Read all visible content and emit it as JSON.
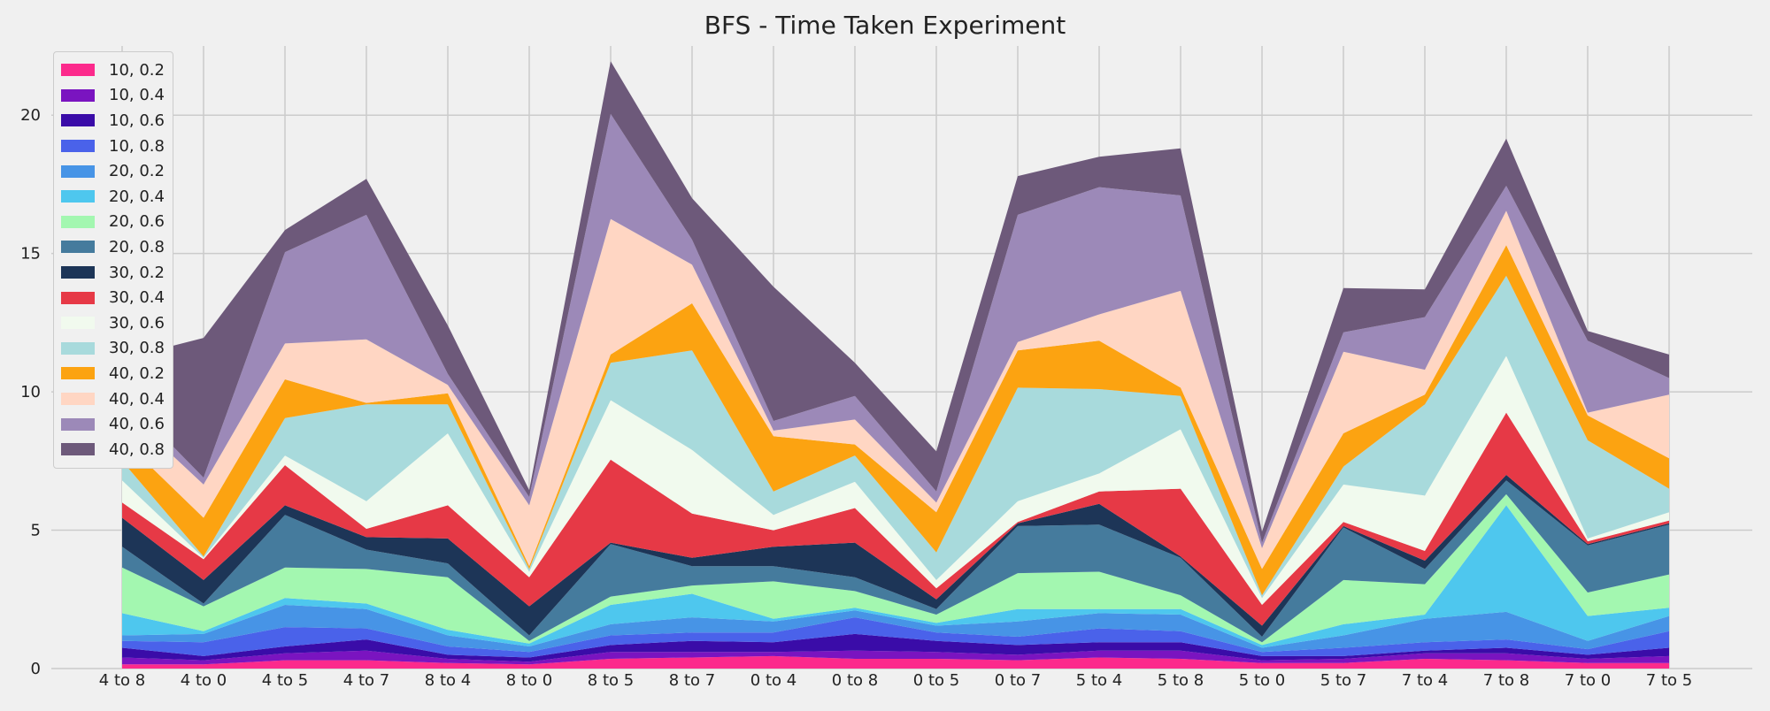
{
  "chart_data": {
    "type": "area",
    "stacked": true,
    "title": "BFS - Time Taken Experiment",
    "xlabel": "",
    "ylabel": "",
    "ylim": [
      0,
      22.5
    ],
    "yticks": [
      0,
      5,
      10,
      15,
      20
    ],
    "grid": true,
    "legend_position": "top-left",
    "categories": [
      "4 to 8",
      "4 to 0",
      "4 to 5",
      "4 to 7",
      "8 to 4",
      "8 to 0",
      "8 to 5",
      "8 to 7",
      "0 to 4",
      "0 to 8",
      "0 to 5",
      "0 to 7",
      "5 to 4",
      "5 to 8",
      "5 to 0",
      "5 to 7",
      "7 to 4",
      "7 to 8",
      "7 to 0",
      "7 to 5"
    ],
    "series": [
      {
        "name": "10, 0.2",
        "color": "#fc2a8c",
        "values": [
          0.15,
          0.15,
          0.3,
          0.3,
          0.2,
          0.15,
          0.35,
          0.4,
          0.45,
          0.35,
          0.35,
          0.3,
          0.4,
          0.35,
          0.2,
          0.2,
          0.35,
          0.3,
          0.2,
          0.2
        ]
      },
      {
        "name": "10, 0.4",
        "color": "#7a14c0",
        "values": [
          0.25,
          0.15,
          0.25,
          0.35,
          0.15,
          0.1,
          0.25,
          0.2,
          0.15,
          0.3,
          0.25,
          0.2,
          0.25,
          0.3,
          0.1,
          0.15,
          0.2,
          0.25,
          0.15,
          0.25
        ]
      },
      {
        "name": "10, 0.6",
        "color": "#3a0ca8",
        "values": [
          0.35,
          0.15,
          0.25,
          0.4,
          0.15,
          0.15,
          0.25,
          0.4,
          0.35,
          0.6,
          0.4,
          0.35,
          0.3,
          0.3,
          0.15,
          0.1,
          0.1,
          0.2,
          0.15,
          0.3
        ]
      },
      {
        "name": "10, 0.8",
        "color": "#4a62ea",
        "values": [
          0.25,
          0.5,
          0.7,
          0.4,
          0.3,
          0.2,
          0.35,
          0.3,
          0.35,
          0.6,
          0.3,
          0.3,
          0.5,
          0.4,
          0.15,
          0.3,
          0.3,
          0.3,
          0.2,
          0.6
        ]
      },
      {
        "name": "20, 0.2",
        "color": "#4794e6",
        "values": [
          0.2,
          0.3,
          0.8,
          0.7,
          0.4,
          0.2,
          0.4,
          0.55,
          0.4,
          0.25,
          0.25,
          0.55,
          0.55,
          0.6,
          0.15,
          0.45,
          0.85,
          1.0,
          0.3,
          0.55
        ]
      },
      {
        "name": "20, 0.4",
        "color": "#4ec7ee",
        "values": [
          0.8,
          0.1,
          0.25,
          0.2,
          0.2,
          0.1,
          0.7,
          0.85,
          0.1,
          0.1,
          0.1,
          0.45,
          0.15,
          0.2,
          0.1,
          0.4,
          0.15,
          3.85,
          0.9,
          0.3
        ]
      },
      {
        "name": "20, 0.6",
        "color": "#a3f7b0",
        "values": [
          1.65,
          0.9,
          1.1,
          1.25,
          1.9,
          0.1,
          0.3,
          0.3,
          1.35,
          0.6,
          0.3,
          1.3,
          1.35,
          0.5,
          0.1,
          1.6,
          1.1,
          0.4,
          0.85,
          1.2
        ]
      },
      {
        "name": "20, 0.8",
        "color": "#457b9d",
        "values": [
          0.75,
          0.1,
          1.9,
          0.7,
          0.5,
          0.2,
          1.9,
          0.7,
          0.55,
          0.5,
          0.2,
          1.7,
          1.7,
          1.35,
          0.2,
          1.9,
          0.55,
          0.5,
          1.7,
          1.8
        ]
      },
      {
        "name": "30, 0.2",
        "color": "#1d3557",
        "values": [
          1.05,
          0.85,
          0.35,
          0.45,
          0.9,
          1.05,
          0.05,
          0.3,
          0.7,
          1.25,
          0.35,
          0.1,
          0.75,
          0.05,
          0.4,
          0.05,
          0.3,
          0.2,
          0.05,
          0.05
        ]
      },
      {
        "name": "30, 0.4",
        "color": "#e63946",
        "values": [
          0.55,
          0.75,
          1.45,
          0.3,
          1.2,
          1.05,
          3.0,
          1.6,
          0.6,
          1.25,
          0.4,
          0.05,
          0.45,
          2.45,
          0.75,
          0.15,
          0.35,
          2.25,
          0.1,
          0.1
        ]
      },
      {
        "name": "30, 0.6",
        "color": "#f1faee",
        "values": [
          0.8,
          0.05,
          0.35,
          1.0,
          2.6,
          0.2,
          2.15,
          2.3,
          0.55,
          0.95,
          0.3,
          0.75,
          0.65,
          2.15,
          0.25,
          1.35,
          2.0,
          2.05,
          0.1,
          0.3
        ]
      },
      {
        "name": "30, 0.8",
        "color": "#a8dadc",
        "values": [
          0.7,
          0.05,
          1.35,
          3.5,
          1.05,
          0.1,
          1.35,
          3.6,
          0.85,
          0.95,
          1.0,
          4.1,
          3.05,
          1.2,
          0.1,
          0.65,
          3.3,
          2.9,
          3.55,
          0.85
        ]
      },
      {
        "name": "40, 0.2",
        "color": "#fca311",
        "values": [
          0.8,
          1.4,
          1.4,
          0.05,
          0.4,
          0.1,
          0.3,
          1.7,
          2.0,
          0.4,
          1.45,
          1.35,
          1.75,
          0.3,
          0.95,
          1.2,
          0.35,
          1.1,
          0.9,
          1.1
        ]
      },
      {
        "name": "40, 0.4",
        "color": "#ffd6c3",
        "values": [
          1.1,
          1.2,
          1.3,
          2.3,
          0.3,
          2.2,
          4.9,
          1.4,
          0.2,
          0.9,
          0.35,
          0.3,
          0.95,
          3.5,
          0.75,
          2.95,
          0.9,
          1.25,
          0.1,
          2.3
        ]
      },
      {
        "name": "40, 0.6",
        "color": "#9c89b8",
        "values": [
          0.5,
          0.25,
          3.3,
          4.5,
          0.4,
          0.3,
          3.8,
          0.9,
          0.35,
          0.85,
          0.4,
          4.6,
          4.6,
          3.45,
          0.2,
          0.7,
          1.9,
          0.9,
          2.6,
          0.6
        ]
      },
      {
        "name": "40, 0.8",
        "color": "#6d597a",
        "values": [
          1.3,
          5.05,
          0.8,
          1.3,
          1.75,
          0.25,
          1.9,
          1.5,
          4.85,
          1.2,
          1.45,
          1.4,
          1.1,
          1.7,
          0.4,
          1.6,
          1.0,
          1.7,
          0.35,
          0.85
        ]
      }
    ]
  }
}
